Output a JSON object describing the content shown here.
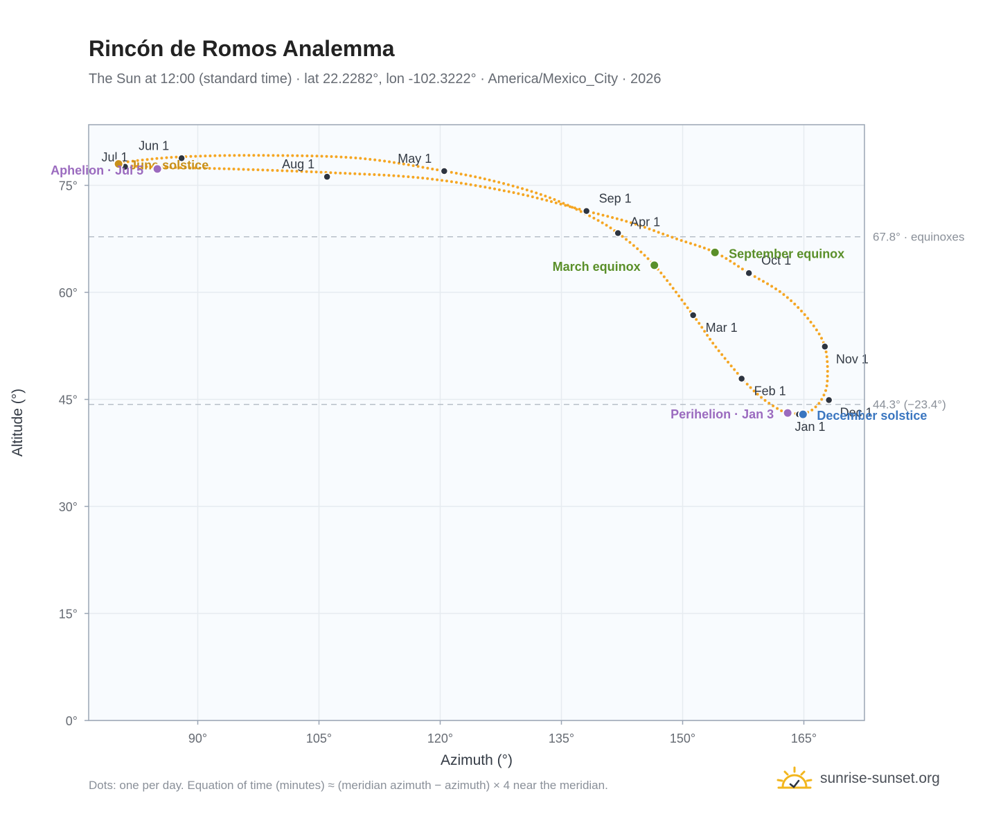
{
  "header": {
    "title": "Rincón de Romos Analemma",
    "subtitle": "The Sun at 12:00 (standard time) · lat 22.2282°, lon -102.3222° · America/Mexico_City · 2026"
  },
  "footer": {
    "note": "Dots: one per day. Equation of time (minutes) ≈ (meridian azimuth − azimuth) × 4 near the meridian.",
    "brand": "sunrise-sunset.org"
  },
  "colors": {
    "curve": "#f5a623",
    "month_marker": "#2d3440",
    "equinox": "#5a8f29",
    "june_solstice": "#c8901a",
    "december_solstice": "#3a76c0",
    "apsides": "#9b6bbf",
    "plot_background": "#f8fbfe",
    "grid": "#e6ebf0",
    "reference_line": "#b7bfc8"
  },
  "chart_data": {
    "type": "scatter",
    "xlabel": "Azimuth (°)",
    "ylabel": "Altitude (°)",
    "xlim": [
      76.5,
      172.5
    ],
    "ylim": [
      0,
      83.5
    ],
    "xticks": [
      {
        "value": 90,
        "label": "90°"
      },
      {
        "value": 105,
        "label": "105°"
      },
      {
        "value": 120,
        "label": "120°"
      },
      {
        "value": 135,
        "label": "135°"
      },
      {
        "value": 150,
        "label": "150°"
      },
      {
        "value": 165,
        "label": "165°"
      }
    ],
    "yticks": [
      {
        "value": 0,
        "label": "0°"
      },
      {
        "value": 15,
        "label": "15°"
      },
      {
        "value": 30,
        "label": "30°"
      },
      {
        "value": 45,
        "label": "45°"
      },
      {
        "value": 60,
        "label": "60°"
      },
      {
        "value": 75,
        "label": "75°"
      }
    ],
    "grid": true,
    "reference_lines": [
      {
        "y": 67.8,
        "label": "67.8° · equinoxes"
      },
      {
        "y": 44.3,
        "label": "44.3° (−23.4°)"
      }
    ],
    "analemma_path": [
      [
        164.9,
        43.0
      ],
      [
        166.0,
        43.5
      ],
      [
        167.2,
        45.0
      ],
      [
        167.9,
        47.5
      ],
      [
        167.6,
        52.4
      ],
      [
        165.6,
        56.2
      ],
      [
        162.4,
        59.8
      ],
      [
        158.2,
        62.7
      ],
      [
        154.0,
        65.6
      ],
      [
        149.0,
        67.6
      ],
      [
        143.5,
        69.8
      ],
      [
        138.1,
        71.4
      ],
      [
        129.0,
        74.0
      ],
      [
        118.0,
        76.0
      ],
      [
        106.0,
        76.8
      ],
      [
        94.0,
        77.3
      ],
      [
        84.0,
        77.6
      ],
      [
        81.0,
        77.8
      ],
      [
        80.2,
        78.0
      ],
      [
        82.0,
        78.4
      ],
      [
        88.0,
        79.0
      ],
      [
        98.0,
        79.2
      ],
      [
        110.0,
        78.8
      ],
      [
        120.5,
        77.0
      ],
      [
        127.0,
        75.5
      ],
      [
        133.0,
        73.5
      ],
      [
        138.0,
        71.0
      ],
      [
        142.0,
        68.3
      ],
      [
        146.5,
        63.8
      ],
      [
        151.3,
        56.8
      ],
      [
        154.0,
        52.5
      ],
      [
        157.3,
        48.0
      ],
      [
        159.5,
        45.5
      ],
      [
        161.6,
        43.8
      ],
      [
        163.0,
        43.1
      ],
      [
        164.9,
        43.0
      ]
    ],
    "month_markers": [
      {
        "label": "Jan 1",
        "az": 164.4,
        "alt": 42.9
      },
      {
        "label": "Feb 1",
        "az": 157.3,
        "alt": 47.9
      },
      {
        "label": "Mar 1",
        "az": 151.3,
        "alt": 56.8
      },
      {
        "label": "Apr 1",
        "az": 142.0,
        "alt": 68.3
      },
      {
        "label": "May 1",
        "az": 120.5,
        "alt": 77.0
      },
      {
        "label": "Jun 1",
        "az": 88.0,
        "alt": 78.8
      },
      {
        "label": "Jul 1",
        "az": 81.0,
        "alt": 77.6
      },
      {
        "label": "Aug 1",
        "az": 106.0,
        "alt": 76.2
      },
      {
        "label": "Sep 1",
        "az": 138.1,
        "alt": 71.4
      },
      {
        "label": "Oct 1",
        "az": 158.2,
        "alt": 62.7
      },
      {
        "label": "Nov 1",
        "az": 167.6,
        "alt": 52.4
      },
      {
        "label": "Dec 1",
        "az": 168.1,
        "alt": 44.9
      }
    ],
    "events": [
      {
        "label": "March equinox",
        "az": 146.5,
        "alt": 63.8,
        "color": "#5a8f29",
        "anchor": "end"
      },
      {
        "label": "September equinox",
        "az": 154.0,
        "alt": 65.6,
        "color": "#5a8f29",
        "anchor": "start"
      },
      {
        "label": "June solstice",
        "az": 80.2,
        "alt": 78.0,
        "color": "#c8901a",
        "anchor": "start"
      },
      {
        "label": "December solstice",
        "az": 164.9,
        "alt": 42.9,
        "color": "#3a76c0",
        "anchor": "start"
      },
      {
        "label": "Perihelion · Jan 3",
        "az": 163.0,
        "alt": 43.1,
        "color": "#9b6bbf",
        "anchor": "end"
      },
      {
        "label": "Aphelion · Jul 5",
        "az": 85.0,
        "alt": 77.3,
        "color": "#9b6bbf",
        "anchor": "end"
      }
    ]
  }
}
